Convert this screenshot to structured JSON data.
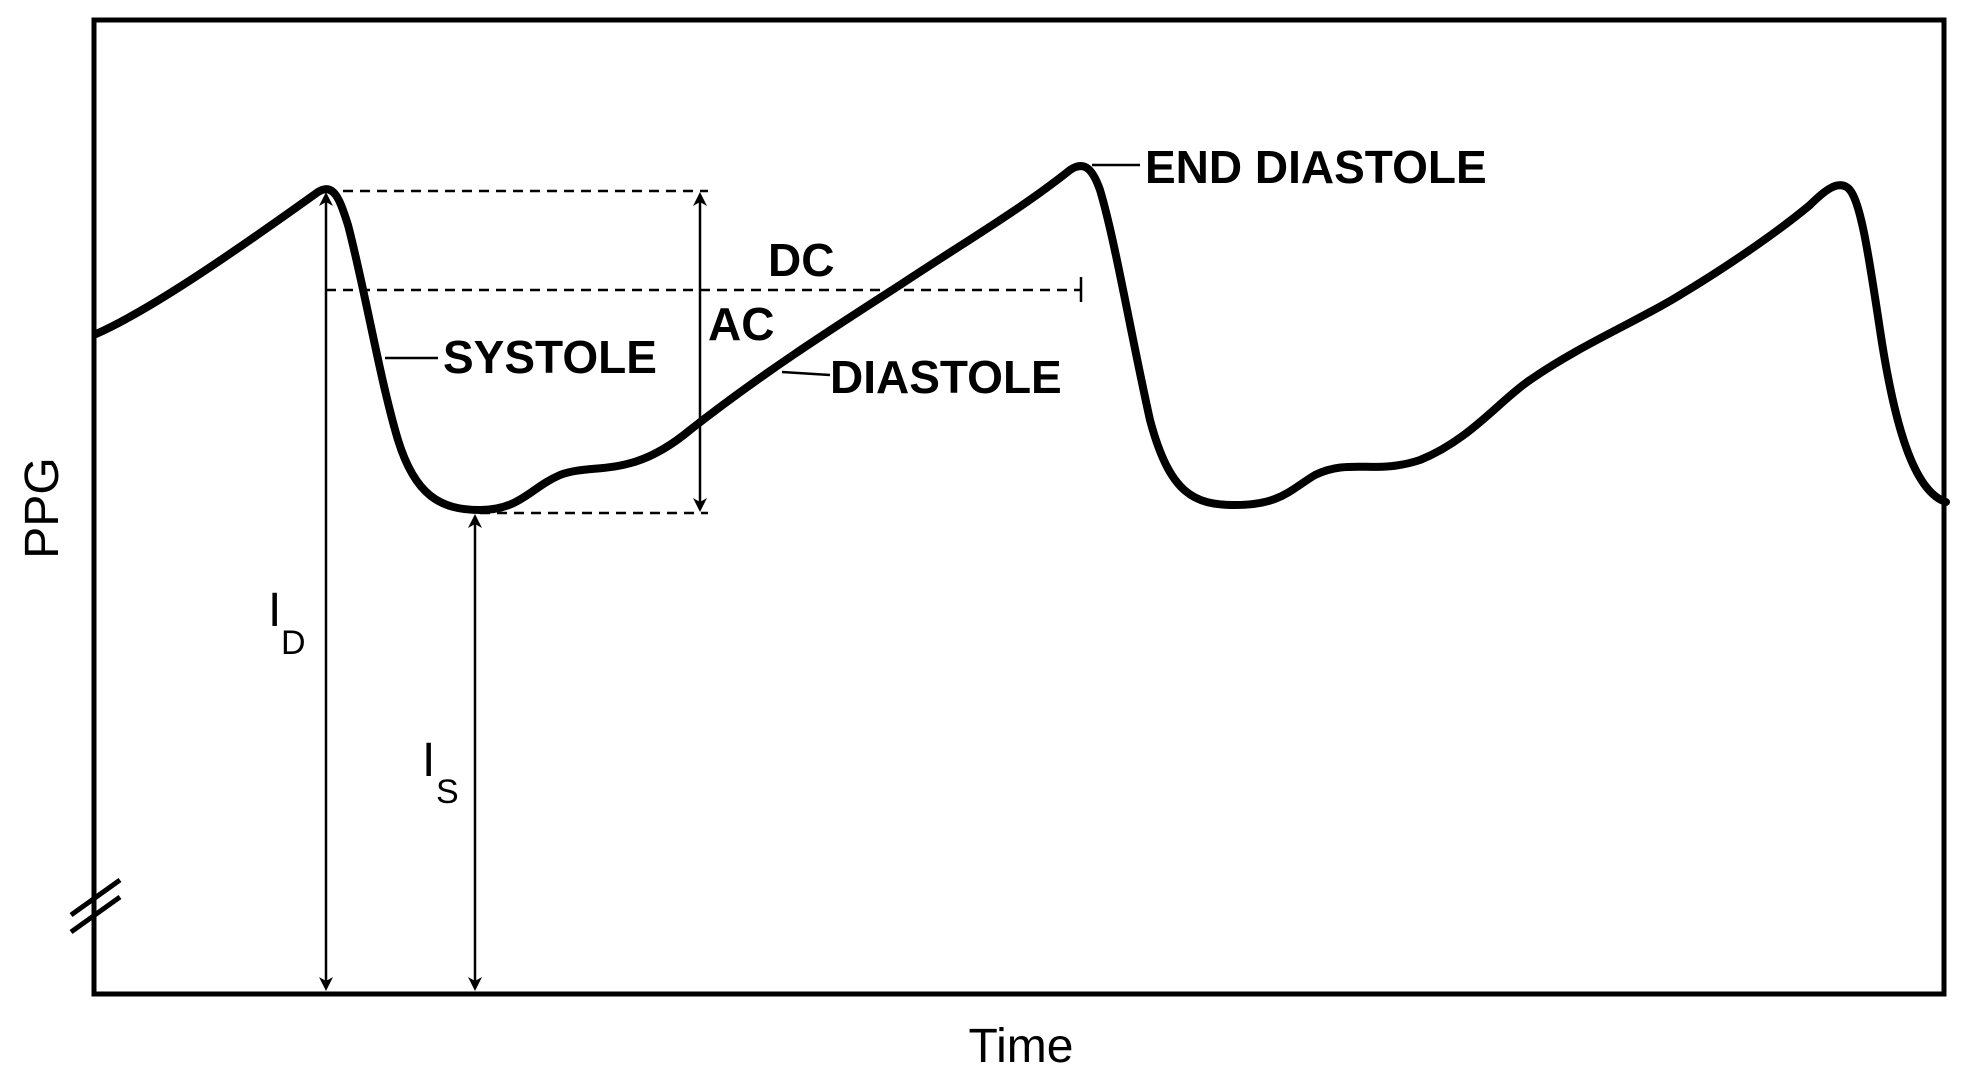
{
  "axes": {
    "y_label": "PPG",
    "x_label": "Time"
  },
  "annotations": {
    "end_diastole": "END DIASTOLE",
    "systole": "SYSTOLE",
    "diastole": "DIASTOLE",
    "dc": "DC",
    "ac": "AC"
  },
  "intensities": {
    "i_d_main": "I",
    "i_d_sub": "D",
    "i_s_main": "I",
    "i_s_sub": "S"
  },
  "colors": {
    "line": "#000000",
    "background": "#ffffff"
  }
}
